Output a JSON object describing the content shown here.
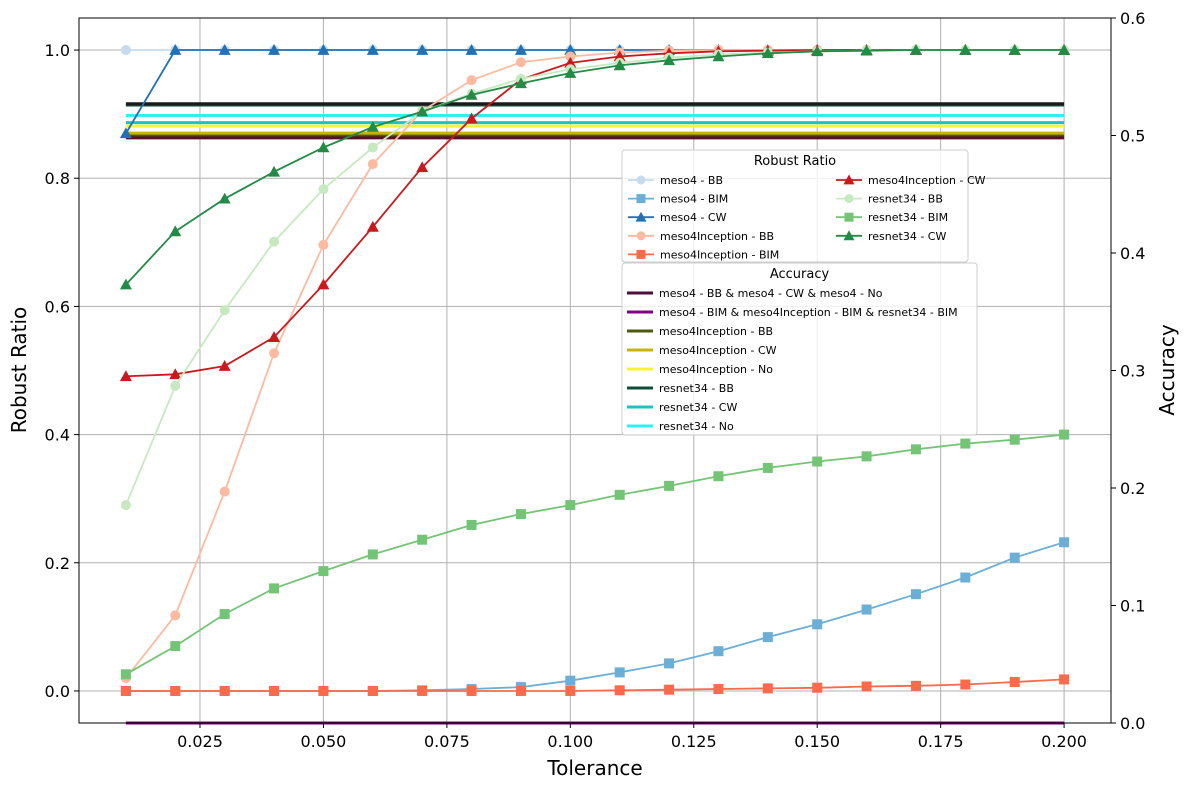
{
  "chart_data": {
    "type": "line",
    "xlabel": "Tolerance",
    "ylabel": "Robust Ratio",
    "y2label": "Accuracy",
    "xlim": [
      0.0005,
      0.2095
    ],
    "ylim": [
      -0.05,
      1.05
    ],
    "y2lim": [
      0.0,
      0.6
    ],
    "grid": true,
    "x_ticks": [
      "0.025",
      "0.050",
      "0.075",
      "0.100",
      "0.125",
      "0.150",
      "0.175",
      "0.200"
    ],
    "y_ticks": [
      "0.0",
      "0.2",
      "0.4",
      "0.6",
      "0.8",
      "1.0"
    ],
    "y2_ticks": [
      "0.0",
      "0.1",
      "0.2",
      "0.3",
      "0.4",
      "0.5",
      "0.6"
    ],
    "x": [
      0.01,
      0.02,
      0.03,
      0.04,
      0.05,
      0.06,
      0.07,
      0.08,
      0.09,
      0.1,
      0.11,
      0.12,
      0.13,
      0.14,
      0.15,
      0.16,
      0.17,
      0.18,
      0.19,
      0.2
    ],
    "robust_legend_title": "Robust Ratio",
    "accuracy_legend_title": "Accuracy",
    "robust_ratio_series": [
      {
        "name": "meso4 - BB",
        "color": "#c6dbef",
        "marker": "circle",
        "values": [
          1.0,
          1.0,
          1.0,
          1.0,
          1.0,
          1.0,
          1.0,
          1.0,
          1.0,
          1.0,
          1.0,
          1.0,
          1.0,
          1.0,
          1.0,
          1.0,
          1.0,
          1.0,
          1.0,
          1.0
        ]
      },
      {
        "name": "meso4 - BIM",
        "color": "#6baed6",
        "marker": "square",
        "values": [
          0.0,
          0.0,
          0.0,
          0.0,
          0.0,
          0.0,
          0.001,
          0.003,
          0.006,
          0.016,
          0.029,
          0.043,
          0.062,
          0.084,
          0.104,
          0.127,
          0.151,
          0.177,
          0.208,
          0.232
        ]
      },
      {
        "name": "meso4 - CW",
        "color": "#2171b5",
        "marker": "triangle",
        "values": [
          0.87,
          1.0,
          1.0,
          1.0,
          1.0,
          1.0,
          1.0,
          1.0,
          1.0,
          1.0,
          1.0,
          1.0,
          1.0,
          1.0,
          1.0,
          1.0,
          1.0,
          1.0,
          1.0,
          1.0
        ]
      },
      {
        "name": "meso4Inception - BB",
        "color": "#fcbba1",
        "marker": "circle",
        "values": [
          0.02,
          0.118,
          0.311,
          0.527,
          0.696,
          0.822,
          0.905,
          0.953,
          0.981,
          0.99,
          0.996,
          0.999,
          1.0,
          1.0,
          1.0,
          1.0,
          1.0,
          1.0,
          1.0,
          1.0
        ]
      },
      {
        "name": "meso4Inception - BIM",
        "color": "#fb6a4a",
        "marker": "square",
        "values": [
          0.0,
          0.0,
          0.0,
          0.0,
          0.0,
          0.0,
          0.0,
          0.0,
          0.0,
          0.0,
          0.001,
          0.002,
          0.003,
          0.004,
          0.005,
          0.007,
          0.008,
          0.01,
          0.014,
          0.018
        ]
      },
      {
        "name": "meso4Inception - CW",
        "color": "#cb181d",
        "marker": "triangle",
        "values": [
          0.491,
          0.494,
          0.507,
          0.552,
          0.634,
          0.724,
          0.817,
          0.893,
          0.954,
          0.98,
          0.99,
          0.995,
          0.998,
          0.999,
          1.0,
          1.0,
          1.0,
          1.0,
          1.0,
          1.0
        ]
      },
      {
        "name": "resnet34 - BB",
        "color": "#c7e9c0",
        "marker": "circle",
        "values": [
          0.29,
          0.476,
          0.594,
          0.701,
          0.783,
          0.848,
          0.904,
          0.932,
          0.955,
          0.97,
          0.98,
          0.988,
          0.993,
          0.996,
          0.998,
          0.999,
          1.0,
          1.0,
          1.0,
          1.0
        ]
      },
      {
        "name": "resnet34 - BIM",
        "color": "#74c476",
        "marker": "square",
        "values": [
          0.026,
          0.07,
          0.12,
          0.16,
          0.187,
          0.213,
          0.236,
          0.259,
          0.276,
          0.29,
          0.306,
          0.32,
          0.335,
          0.348,
          0.358,
          0.366,
          0.377,
          0.386,
          0.392,
          0.4
        ]
      },
      {
        "name": "resnet34 - CW",
        "color": "#238b45",
        "marker": "triangle",
        "values": [
          0.634,
          0.717,
          0.768,
          0.81,
          0.848,
          0.88,
          0.904,
          0.93,
          0.948,
          0.964,
          0.976,
          0.984,
          0.99,
          0.995,
          0.998,
          0.999,
          1.0,
          1.0,
          1.0,
          1.0
        ]
      }
    ],
    "accuracy_series": [
      {
        "name": "meso4 - BB & meso4 - CW & meso4 - No",
        "color": "#4a0f3b",
        "value": 0.0
      },
      {
        "name": "meso4 - BIM & meso4Inception - BIM & resnet34 - BIM",
        "color": "#800080",
        "value": 0.0
      },
      {
        "name": "meso4Inception - BB",
        "color": "#4b5a0c",
        "value": 0.5
      },
      {
        "name": "meso4Inception - CW",
        "color": "#c8b400",
        "value": 0.502
      },
      {
        "name": "meso4Inception - No",
        "color": "#f5f532",
        "value": 0.508
      },
      {
        "name": "resnet34 - BB",
        "color": "#0d4f3a",
        "value": 0.526
      },
      {
        "name": "resnet34 - CW",
        "color": "#20c0c8",
        "value": 0.511
      },
      {
        "name": "resnet34 - No",
        "color": "#2ff0ef",
        "value": 0.517
      },
      {
        "name": "",
        "color": "#5a0f28",
        "value": 0.498
      },
      {
        "name": "",
        "color": "#1a1a1a",
        "value": 0.527
      }
    ]
  }
}
